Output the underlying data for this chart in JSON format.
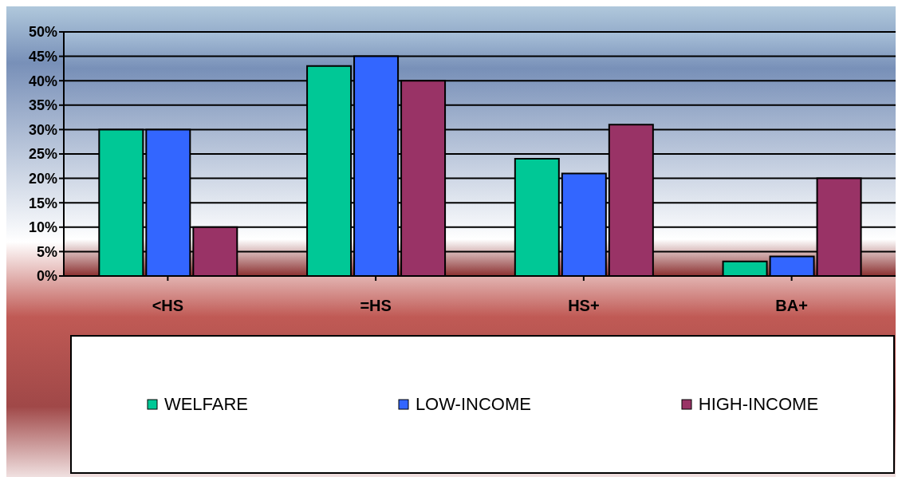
{
  "chart_data": {
    "type": "bar",
    "categories": [
      "<HS",
      "=HS",
      "HS+",
      "BA+"
    ],
    "series": [
      {
        "name": "WELFARE",
        "color": "#00c896",
        "values": [
          30,
          43,
          24,
          3
        ]
      },
      {
        "name": "LOW-INCOME",
        "color": "#3366ff",
        "values": [
          30,
          45,
          21,
          4
        ]
      },
      {
        "name": "HIGH-INCOME",
        "color": "#993366",
        "values": [
          10,
          40,
          31,
          20
        ]
      }
    ],
    "ylim": [
      0,
      50
    ],
    "yticks": [
      {
        "value": 0,
        "label": "0%"
      },
      {
        "value": 5,
        "label": "5%"
      },
      {
        "value": 10,
        "label": "10%"
      },
      {
        "value": 15,
        "label": "15%"
      },
      {
        "value": 20,
        "label": "20%"
      },
      {
        "value": 25,
        "label": "25%"
      },
      {
        "value": 30,
        "label": "30%"
      },
      {
        "value": 35,
        "label": "35%"
      },
      {
        "value": 40,
        "label": "40%"
      },
      {
        "value": 45,
        "label": "45%"
      },
      {
        "value": 50,
        "label": "50%"
      }
    ],
    "grid": "y",
    "legend": "bottom"
  }
}
